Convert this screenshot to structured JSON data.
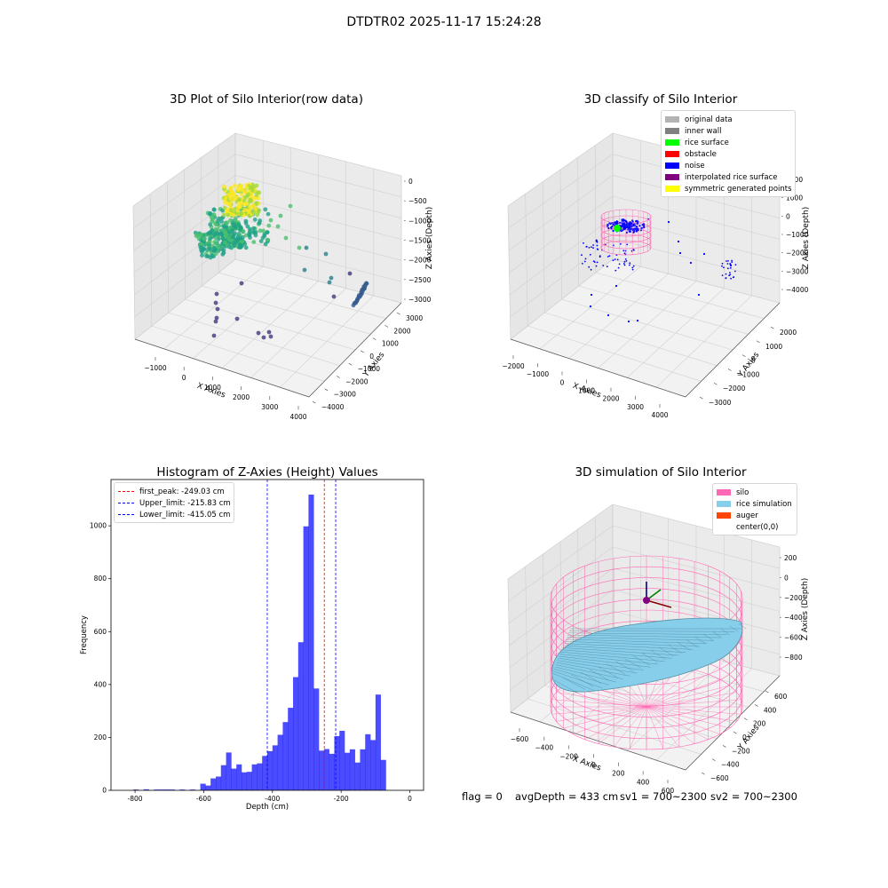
{
  "suptitle": "DTDTR02 2025-11-17 15:24:28",
  "chart_data": [
    {
      "type": "scatter",
      "title": "3D Plot of Silo Interior(row data)",
      "xlabel": "X Axies",
      "ylabel": "Y Axies",
      "zlabel": "Z Axies (Depth)",
      "x_ticks": [
        "−1000",
        "0",
        "1000",
        "2000",
        "3000",
        "4000"
      ],
      "y_ticks": [
        "−4000",
        "−3000",
        "−2000",
        "−1000",
        "0",
        "1000",
        "2000",
        "3000"
      ],
      "z_ticks": [
        "0",
        "−500",
        "−1000",
        "−1500",
        "−2000",
        "−2500",
        "−3000"
      ],
      "colormap": "viridis",
      "grid": true
    },
    {
      "type": "scatter",
      "title": "3D classify of Silo Interior",
      "xlabel": "X Axies",
      "ylabel": "Y Axies",
      "zlabel": "Z Axies (Depth)",
      "x_ticks": [
        "−2000",
        "−1000",
        "0",
        "1000",
        "2000",
        "3000",
        "4000"
      ],
      "y_ticks": [
        "−3000",
        "−2000",
        "−1000",
        "0",
        "1000",
        "2000"
      ],
      "z_ticks": [
        "2000",
        "1000",
        "0",
        "−1000",
        "−2000",
        "−3000",
        "−4000"
      ],
      "legend": [
        {
          "label": "original data",
          "color": "#b3b3b3"
        },
        {
          "label": "inner wall",
          "color": "#808080"
        },
        {
          "label": "rice surface",
          "color": "#00ff00"
        },
        {
          "label": "obstacle",
          "color": "#ff0000"
        },
        {
          "label": "noise",
          "color": "#0000ff"
        },
        {
          "label": "interpolated rice surface",
          "color": "#800080"
        },
        {
          "label": "symmetric generated points",
          "color": "#ffff00"
        }
      ],
      "legend_position": "top-right",
      "grid": true
    },
    {
      "type": "bar",
      "title": "Histogram of Z-Axies (Height) Values",
      "xlabel": "Depth (cm)",
      "ylabel": "Frequency",
      "xlim": [
        -870,
        40
      ],
      "ylim": [
        0,
        1175
      ],
      "x_ticks": [
        -800,
        -600,
        -400,
        -200,
        0
      ],
      "y_ticks": [
        0,
        200,
        400,
        600,
        800,
        1000
      ],
      "bin_start": -805,
      "bin_width": 15,
      "values": [
        3,
        0,
        4,
        0,
        3,
        3,
        3,
        3,
        0,
        3,
        0,
        3,
        0,
        25,
        18,
        45,
        52,
        95,
        143,
        82,
        98,
        68,
        70,
        98,
        102,
        130,
        148,
        170,
        210,
        258,
        312,
        428,
        560,
        998,
        1118,
        385,
        150,
        156,
        138,
        205,
        225,
        142,
        155,
        105,
        155,
        212,
        190,
        362,
        115
      ],
      "bar_color": "#0000ff",
      "bar_alpha": 0.7,
      "lines": [
        {
          "label": "first_peak: -249.03 cm",
          "x": -249.03,
          "color": "#ff0000"
        },
        {
          "label": "Upper_limit: -215.83 cm",
          "x": -215.83,
          "color": "#0000ff"
        },
        {
          "label": "Lower_limit: -415.05 cm",
          "x": -415.05,
          "color": "#0000ff"
        }
      ],
      "legend_position": "top-left"
    },
    {
      "type": "surface",
      "title": "3D simulation of Silo Interior",
      "xlabel": "X Axies",
      "ylabel": "Y Axies",
      "zlabel": "Z Axies (Depth)",
      "x_ticks": [
        "−600",
        "−400",
        "−200",
        "0",
        "200",
        "400",
        "600"
      ],
      "y_ticks": [
        "−600",
        "−400",
        "−200",
        "0",
        "200",
        "400",
        "600"
      ],
      "z_ticks": [
        "200",
        "0",
        "−200",
        "−400",
        "−600",
        "−800"
      ],
      "legend": [
        {
          "label": "silo",
          "color": "#ff69b4"
        },
        {
          "label": "rice simulation",
          "color": "#87ceeb"
        },
        {
          "label": "auger",
          "color": "#ff4500"
        },
        {
          "label": "center(0,0)",
          "color": "#ffffff"
        }
      ],
      "legend_position": "top-right",
      "grid": true
    }
  ],
  "footer": {
    "flag": "flag = 0",
    "avg": "avgDepth = 433 cm",
    "sv1": "sv1 = 700~2300",
    "sv2": "sv2 = 700~2300"
  }
}
